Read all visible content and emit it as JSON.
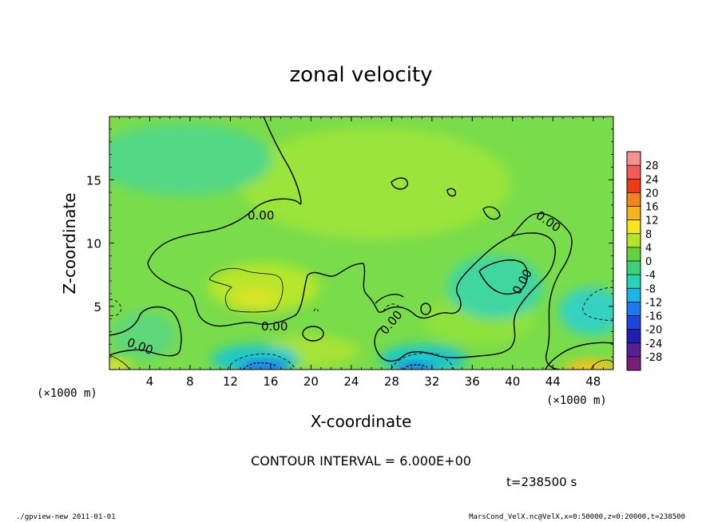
{
  "chart_data": {
    "type": "contour",
    "title": "zonal velocity",
    "xlabel": "X-coordinate",
    "ylabel": "Z-coordinate",
    "x_unit": "(×1000 m)",
    "z_unit": "(×1000 m)",
    "xlim": [
      0,
      50
    ],
    "ylim": [
      0,
      20
    ],
    "x_ticks": [
      4,
      8,
      12,
      16,
      20,
      24,
      28,
      32,
      36,
      40,
      44,
      48
    ],
    "y_ticks": [
      5,
      10,
      15
    ],
    "contour_interval_text": "CONTOUR INTERVAL = 6.000E+00",
    "time_text": "t=238500 s",
    "colorbar_levels": [
      28,
      24,
      20,
      16,
      12,
      8,
      4,
      0,
      -4,
      -8,
      -12,
      -16,
      -20,
      -24,
      -28
    ],
    "contour_labels": [
      "0.00",
      "0.00",
      "0.00",
      "0.00",
      "0.00",
      "0.00"
    ],
    "grid": false
  },
  "footer": {
    "left": "./gpview-new   2011-01-01",
    "right": "MarsCond_VelX.nc@VelX,x=0:50000,z=0:20000,t=238500"
  },
  "colors": {
    "background": "#7ddc3a",
    "positive": "#a8e62e",
    "negative_light": "#3cd6a8",
    "negative_strong": "#1e8cff",
    "warm": "#f5d21e"
  }
}
